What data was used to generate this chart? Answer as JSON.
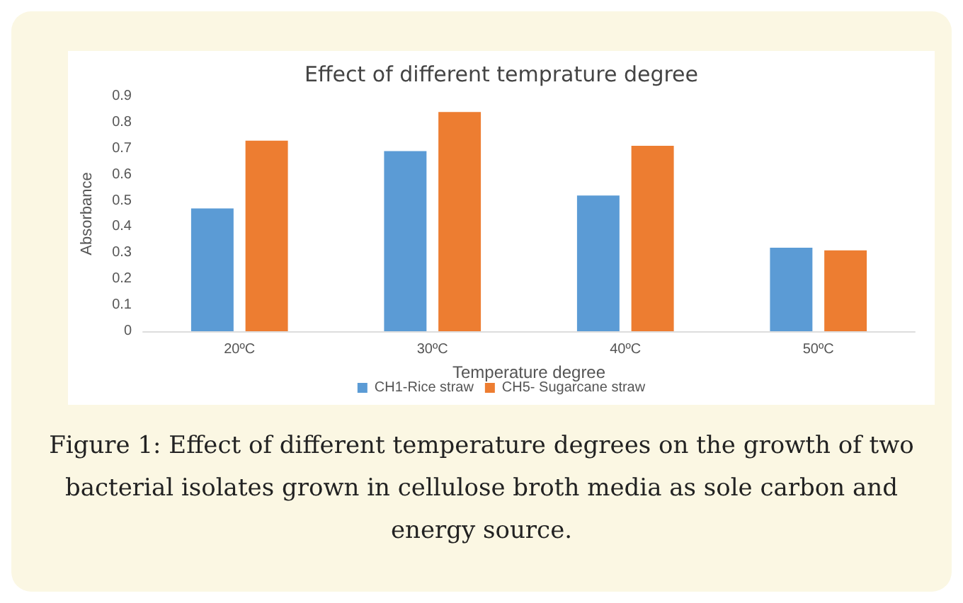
{
  "chart_data": {
    "type": "bar",
    "title": "Effect of different temprature degree",
    "xlabel": "Temperature degree",
    "ylabel": "Absorbance",
    "categories": [
      "20ºC",
      "30ºC",
      "40ºC",
      "50ºC"
    ],
    "series": [
      {
        "name": "CH1-Rice straw",
        "color": "#5b9bd5",
        "values": [
          0.47,
          0.69,
          0.52,
          0.32
        ]
      },
      {
        "name": "CH5- Sugarcane straw",
        "color": "#ed7d31",
        "values": [
          0.73,
          0.84,
          0.71,
          0.31
        ]
      }
    ],
    "ylim": [
      0,
      0.9
    ],
    "yticks": [
      0,
      0.1,
      0.2,
      0.3,
      0.4,
      0.5,
      0.6,
      0.7,
      0.8,
      0.9
    ],
    "grid": false,
    "legend": "bottom",
    "annotations": [
      "Figure 1: Effect of different temperature degrees on the growth of two bacterial isolates grown in cellulose broth media as sole carbon and energy source."
    ]
  }
}
